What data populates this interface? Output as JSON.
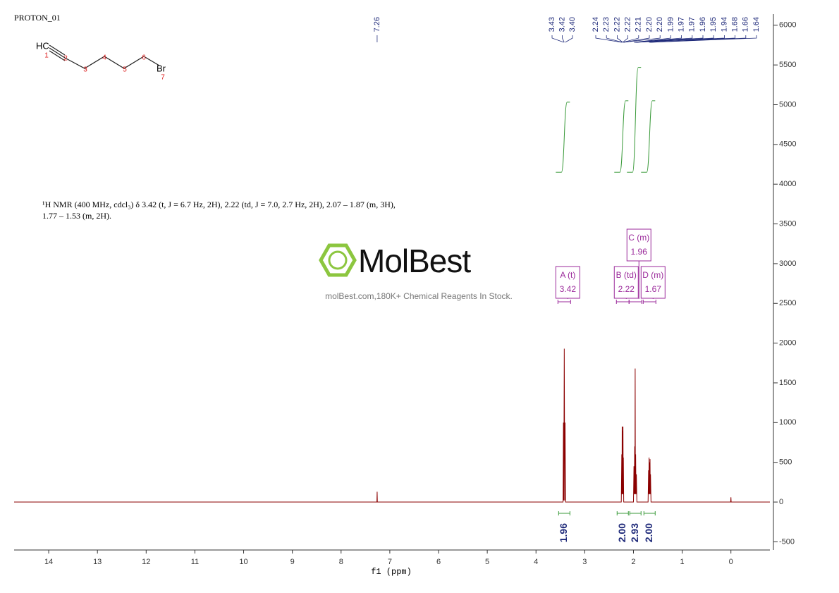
{
  "chart_data": {
    "type": "line",
    "title": "PROTON_01",
    "x_label": "f1 (ppm)",
    "description": [
      "¹H NMR (400 MHz, cdcl₃) δ 3.42 (t, J = 6.7 Hz, 2H), 2.22 (td, J = 7.0, 2.7 Hz, 2H), 2.07 – 1.87 (m, 3H),",
      "1.77 – 1.53 (m, 2H)."
    ],
    "watermark": {
      "brand": "MolBest",
      "tagline": "molBest.com,180K+ Chemical Reagents In Stock."
    },
    "structure": {
      "atoms": [
        "HC",
        "Br"
      ],
      "numbers": [
        1,
        2,
        3,
        4,
        5,
        6,
        7
      ]
    },
    "xlim": [
      14.71,
      -0.8
    ],
    "ylim": [
      -603,
      6140
    ],
    "xticks": [
      14,
      13,
      12,
      11,
      10,
      9,
      8,
      7,
      6,
      5,
      4,
      3,
      2,
      1,
      0
    ],
    "yticks": [
      -500,
      0,
      500,
      1000,
      1500,
      2000,
      2500,
      3000,
      3500,
      4000,
      4500,
      5000,
      5500,
      6000
    ],
    "series": [
      {
        "name": "spectrum",
        "color": "#8b0000",
        "x": [
          14.71,
          7.265,
          7.26,
          7.255,
          3.445,
          3.437,
          3.43,
          3.42,
          3.41,
          3.403,
          3.395,
          2.25,
          2.24,
          2.235,
          2.232,
          2.228,
          2.225,
          2.218,
          2.215,
          2.21,
          2.207,
          2.2,
          2.0,
          1.99,
          1.983,
          1.975,
          1.97,
          1.965,
          1.96,
          1.955,
          1.948,
          1.94,
          1.93,
          1.7,
          1.69,
          1.685,
          1.68,
          1.675,
          1.67,
          1.665,
          1.66,
          1.655,
          1.65,
          1.64,
          0.005,
          0,
          -0.005,
          -0.8
        ],
        "values": [
          0,
          0,
          130,
          0,
          0,
          1000,
          20,
          1930,
          20,
          1000,
          0,
          0,
          600,
          100,
          950,
          100,
          900,
          100,
          950,
          100,
          560,
          0,
          0,
          450,
          100,
          700,
          100,
          1680,
          100,
          600,
          100,
          350,
          0,
          0,
          400,
          100,
          560,
          100,
          500,
          100,
          540,
          100,
          350,
          0,
          0,
          60,
          0,
          0
        ]
      }
    ],
    "peak_labels": [
      7.26,
      3.43,
      3.42,
      {
        "value": 3.4,
        "label": "3.40"
      },
      2.24,
      2.23,
      2.22,
      2.22,
      2.21,
      {
        "value": 2.2,
        "label": "2.20"
      },
      {
        "value": 2.2,
        "label": "2.20"
      },
      1.99,
      1.97,
      1.97,
      1.96,
      1.95,
      1.94,
      1.68,
      1.66,
      1.64
    ],
    "multiplets": [
      {
        "label": "A (t)",
        "shift": 3.42
      },
      {
        "label": "B (td)",
        "shift": 2.22
      },
      {
        "label": "C (m)",
        "shift": 1.96
      },
      {
        "label": "D (m)",
        "shift": 1.67
      }
    ],
    "integrals": [
      1.96,
      {
        "value": 2,
        "label": "2.00"
      },
      2.93,
      {
        "value": 2,
        "label": "2.00"
      }
    ]
  }
}
